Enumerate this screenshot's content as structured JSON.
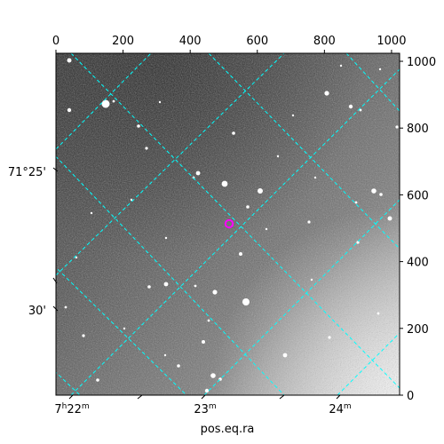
{
  "chart_data": {
    "type": "image",
    "title": "",
    "xlabel": "pos.eq.ra",
    "ylabel": "",
    "pixel_axes": {
      "top": {
        "ticks": [
          0,
          200,
          400,
          600,
          800,
          1000
        ],
        "labels": [
          "0",
          "200",
          "400",
          "600",
          "800",
          "1000"
        ],
        "range": [
          0,
          1024
        ]
      },
      "right": {
        "ticks": [
          0,
          200,
          400,
          600,
          800,
          1000
        ],
        "labels": [
          "0",
          "200",
          "400",
          "600",
          "800",
          "1000"
        ],
        "range": [
          0,
          1024
        ]
      }
    },
    "world_axes": {
      "bottom": {
        "quantity": "right ascension",
        "labels": [
          "7h22m",
          "23m",
          "24m"
        ],
        "label_parts": [
          [
            "7",
            "h",
            "22",
            "m"
          ],
          [
            "23",
            "m"
          ],
          [
            "24",
            "m"
          ]
        ]
      },
      "left": {
        "quantity": "declination",
        "labels": [
          "71°25'",
          "30'"
        ]
      }
    },
    "grid": true,
    "grid_color": "#00ffff",
    "background_image": "grayscale sky image, dark at top, brighter toward lower-right",
    "marker": {
      "shape": "circle",
      "color": "#ff00ff",
      "ra": "7h23m10s",
      "dec": "71°26'50\""
    },
    "colors": {
      "grid": "#00ffff",
      "marker": "#ff00ff",
      "frame": "#000000"
    }
  }
}
